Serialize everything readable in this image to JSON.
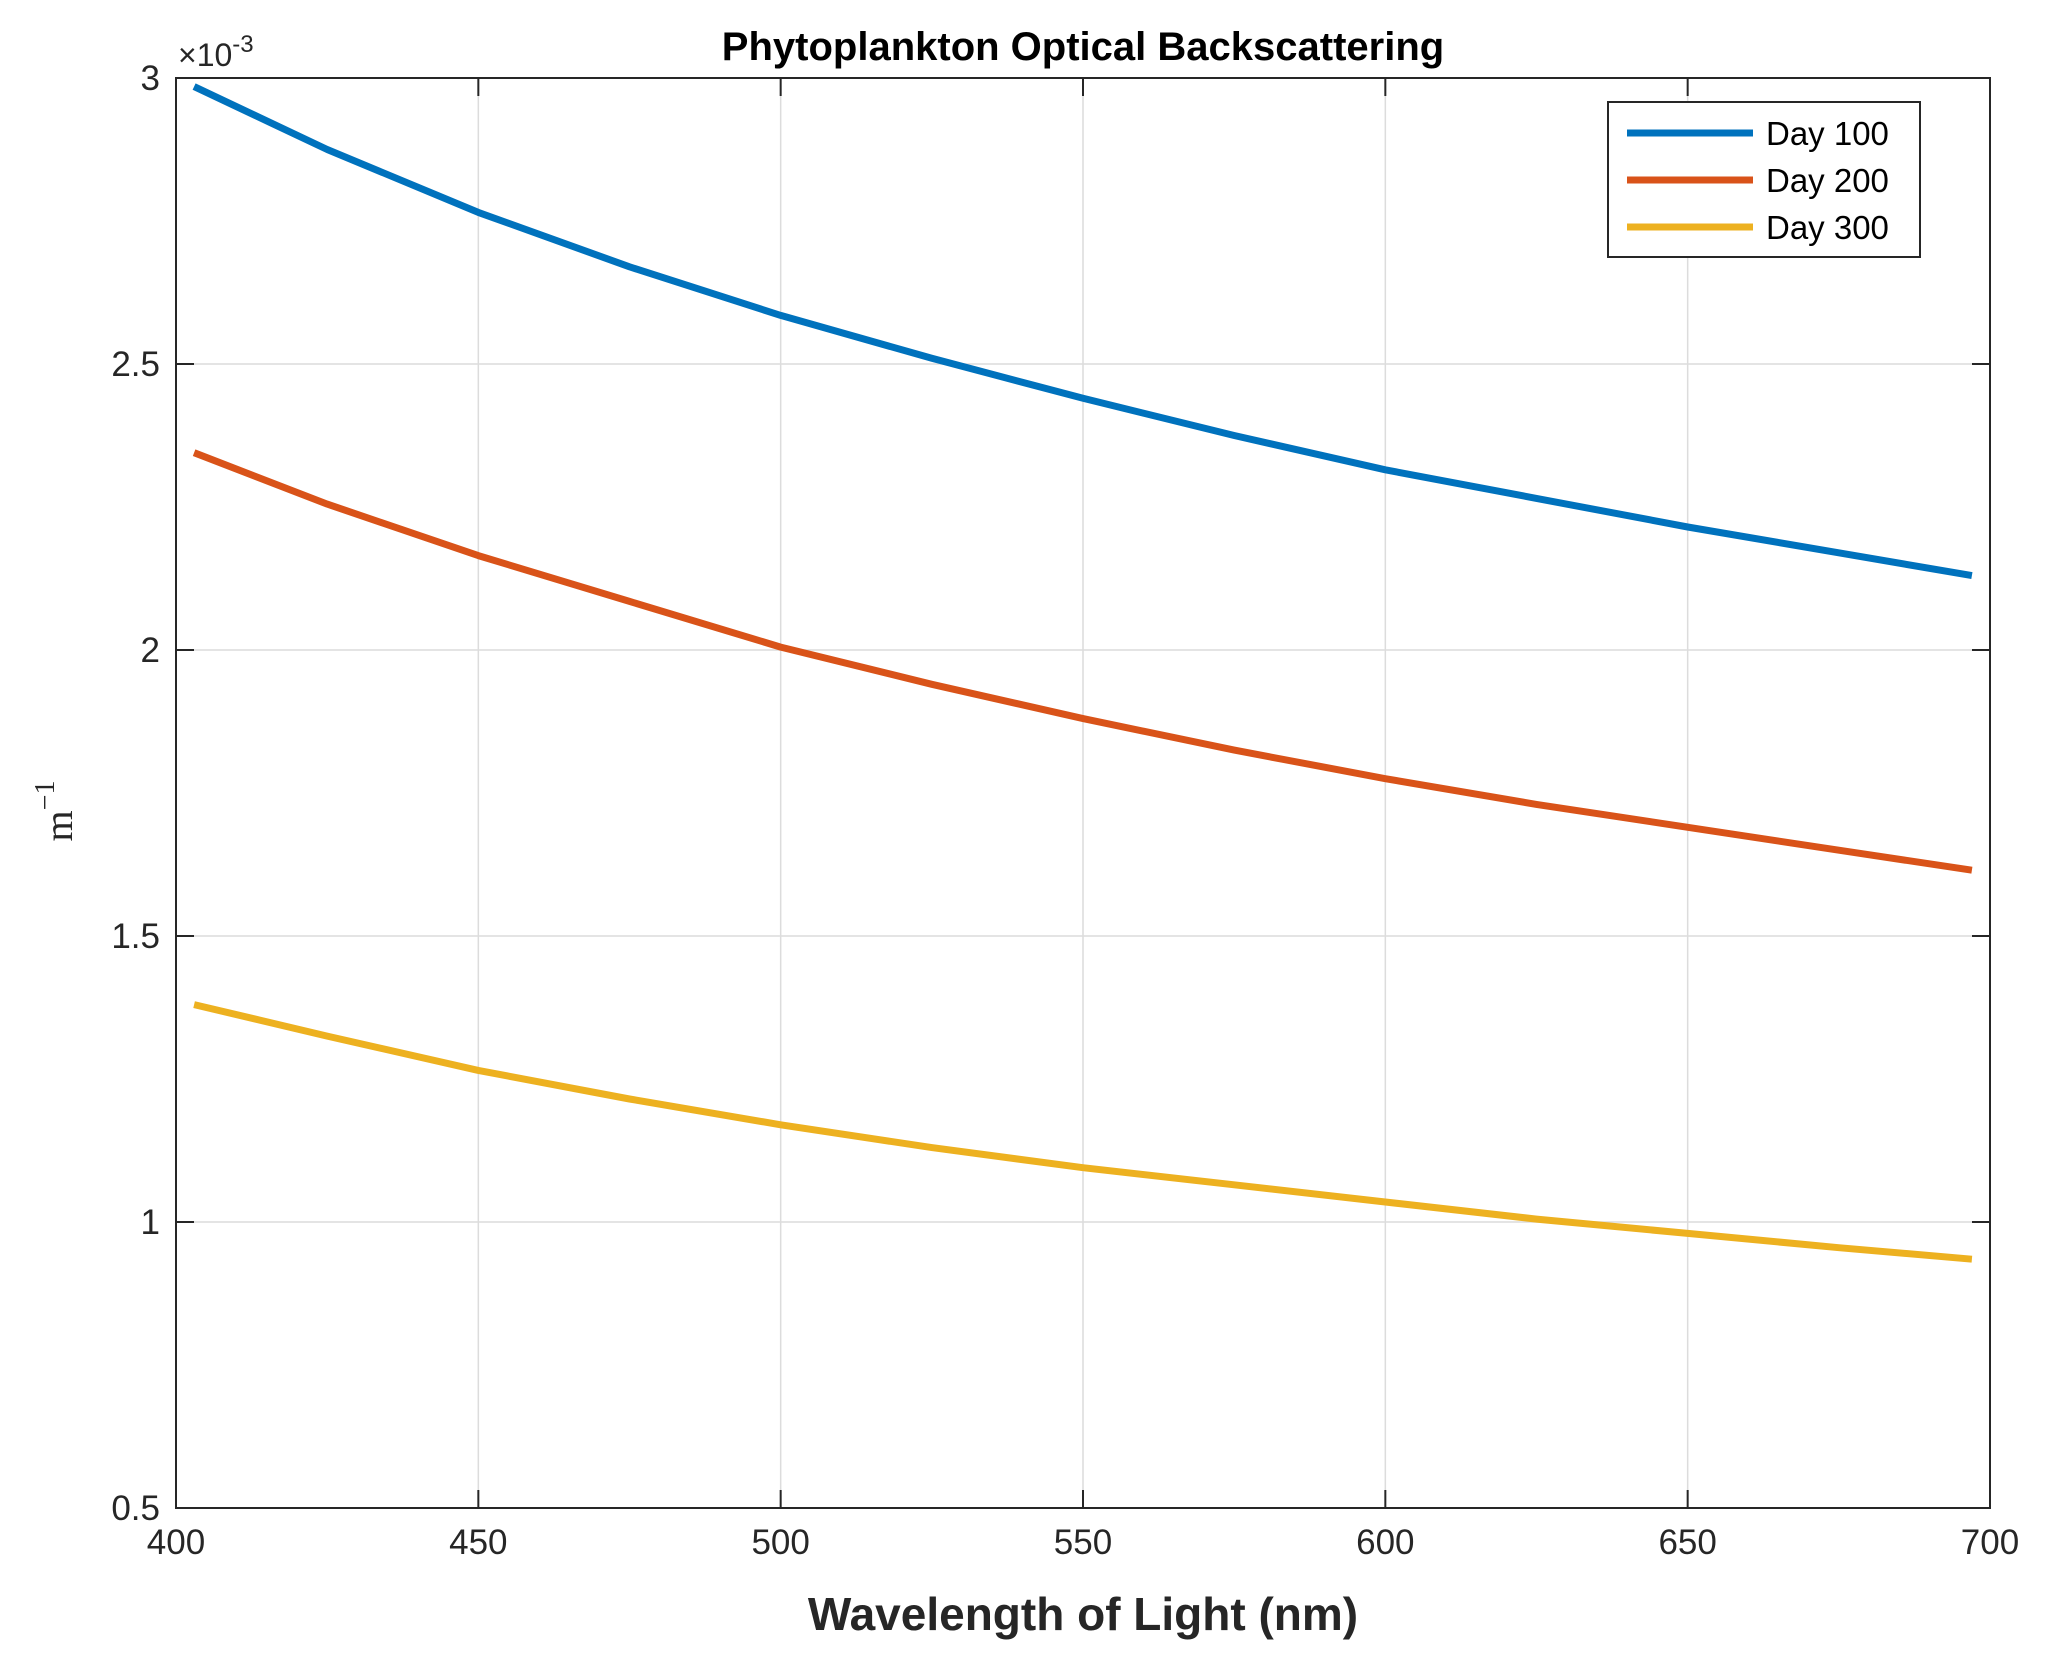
{
  "chart_data": {
    "type": "line",
    "title": "Phytoplankton Optical Backscattering",
    "xlabel": "Wavelength of Light (nm)",
    "ylabel": {
      "base": "m",
      "exponent": "−1"
    },
    "exponent_label": {
      "prefix": "×10",
      "power": "-3"
    },
    "xlim": [
      400,
      700
    ],
    "ylim": [
      0.5,
      3
    ],
    "xticks": [
      "400",
      "450",
      "500",
      "550",
      "600",
      "650",
      "700"
    ],
    "yticks": [
      "0.5",
      "1",
      "1.5",
      "2",
      "2.5",
      "3"
    ],
    "grid": true,
    "legend_position": "top-right",
    "x": [
      403,
      425,
      450,
      475,
      500,
      525,
      550,
      575,
      600,
      625,
      650,
      675,
      697
    ],
    "series": [
      {
        "name": "Day 100",
        "color": "#0072BD",
        "values": [
          2.985,
          2.875,
          2.765,
          2.67,
          2.585,
          2.51,
          2.44,
          2.375,
          2.315,
          2.265,
          2.215,
          2.17,
          2.13
        ]
      },
      {
        "name": "Day 200",
        "color": "#D95319",
        "values": [
          2.345,
          2.255,
          2.165,
          2.085,
          2.005,
          1.94,
          1.88,
          1.825,
          1.775,
          1.73,
          1.69,
          1.65,
          1.615
        ]
      },
      {
        "name": "Day 300",
        "color": "#EDB120",
        "values": [
          1.38,
          1.325,
          1.265,
          1.215,
          1.17,
          1.13,
          1.095,
          1.065,
          1.035,
          1.005,
          0.98,
          0.955,
          0.935
        ]
      }
    ]
  }
}
